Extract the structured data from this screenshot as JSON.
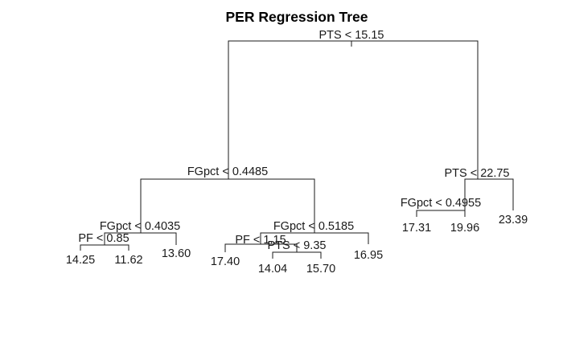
{
  "title": "PER Regression Tree",
  "splits": {
    "root": "PTS < 15.15",
    "left": "FGpct < 0.4485",
    "right": "PTS < 22.75",
    "left_left": "FGpct < 0.4035",
    "left_right": "FGpct < 0.5185",
    "right_left": "FGpct < 0.4955",
    "left_left_left": "PF < 0.85",
    "left_right_left": "PF < 1.15",
    "left_right_left_right": "PTS < 9.35"
  },
  "leaves": {
    "l1": "14.25",
    "l2": "11.62",
    "l3": "13.60",
    "l4": "17.40",
    "l5": "14.04",
    "l6": "15.70",
    "l7": "16.95",
    "l8": "17.31",
    "l9": "19.96",
    "l10": "23.39"
  }
}
